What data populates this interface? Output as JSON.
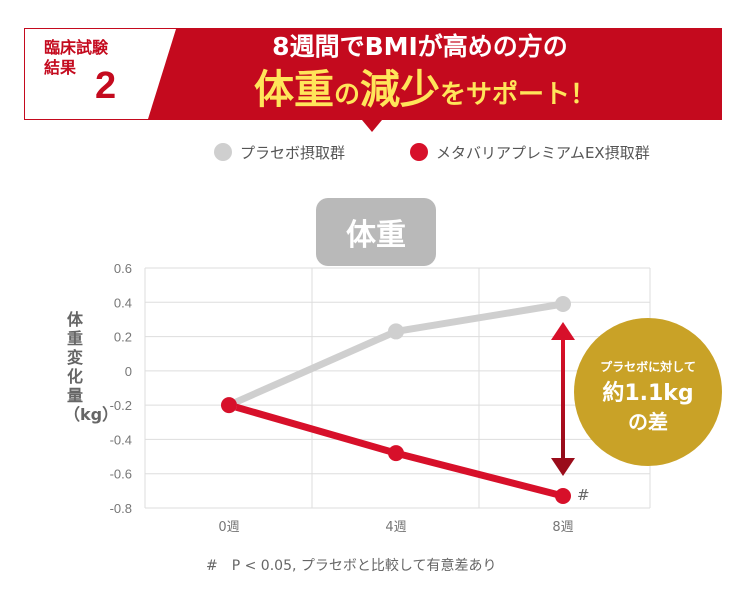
{
  "trial": {
    "label": "臨床試験結果",
    "number": "2"
  },
  "headline": {
    "line1": "8週間でBMIが高めの方の",
    "line2_big1": "体重",
    "line2_small1": "の",
    "line2_big2": "減少",
    "line2_small2": "をサポート！"
  },
  "colors": {
    "placebo": "#cfcfcf",
    "treatment": "#d7102a",
    "callout": "#c9a227",
    "banner": "#c40a1e"
  },
  "chart_data": {
    "type": "line",
    "panel_title": "体重",
    "ylabel": "体重変化量（kg）",
    "x": [
      "0週",
      "4週",
      "8週"
    ],
    "ylim": [
      -0.8,
      0.6
    ],
    "yticks": [
      "0.6",
      "0.4",
      "0.2",
      "0",
      "-0.2",
      "-0.4",
      "-0.6",
      "-0.8"
    ],
    "series": [
      {
        "name": "プラセボ摂取群",
        "values": [
          -0.2,
          0.23,
          0.39
        ]
      },
      {
        "name": "メタバリアプレミアムEX摂取群",
        "values": [
          -0.2,
          -0.48,
          -0.73
        ]
      }
    ],
    "significance_mark": "#",
    "callout": {
      "line1": "プラセボに対して",
      "line2": "約1.1kg",
      "line3": "の差"
    },
    "footnote": "#　P < 0.05, プラセボと比較して有意差あり"
  }
}
